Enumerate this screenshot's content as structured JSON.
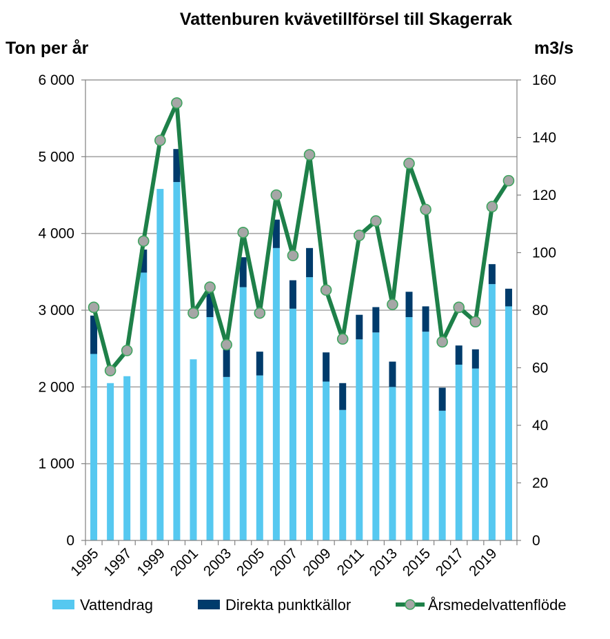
{
  "chart_data": {
    "type": "bar",
    "title": "Vattenburen kvävetillförsel till Skagerrak",
    "ylabel": "Ton per år",
    "y2label": "m3/s",
    "ylim": [
      0,
      6000
    ],
    "y2lim": [
      0,
      160
    ],
    "yticks": [
      "0",
      "1 000",
      "2 000",
      "3 000",
      "4 000",
      "5 000",
      "6 000"
    ],
    "y2ticks": [
      "0",
      "20",
      "40",
      "60",
      "80",
      "100",
      "120",
      "140",
      "160"
    ],
    "grid": true,
    "legend_position": "bottom",
    "stacked": true,
    "years": [
      1995,
      1996,
      1997,
      1998,
      1999,
      2000,
      2001,
      2002,
      2003,
      2004,
      2005,
      2006,
      2007,
      2008,
      2009,
      2010,
      2011,
      2012,
      2013,
      2014,
      2015,
      2016,
      2017,
      2018,
      2019,
      2020
    ],
    "xtick_labels": [
      "1995",
      "1997",
      "1999",
      "2001",
      "2003",
      "2005",
      "2007",
      "2009",
      "2011",
      "2013",
      "2015",
      "2017",
      "2019"
    ],
    "series": [
      {
        "name": "Vattendrag",
        "type": "bar",
        "axis": "left",
        "color": "#56c8f0",
        "values": [
          2430,
          2050,
          2140,
          3490,
          4580,
          4670,
          2360,
          2910,
          2130,
          3300,
          2150,
          3810,
          3020,
          3430,
          2070,
          1700,
          2620,
          2710,
          2000,
          2910,
          2720,
          1690,
          2290,
          2240,
          3340,
          3050
        ]
      },
      {
        "name": "Direkta punktkällor",
        "type": "bar",
        "axis": "left",
        "color": "#003b6b",
        "values": [
          500,
          0,
          0,
          300,
          0,
          430,
          0,
          310,
          420,
          390,
          310,
          370,
          370,
          380,
          380,
          350,
          320,
          330,
          330,
          330,
          330,
          300,
          250,
          250,
          260,
          230
        ]
      },
      {
        "name": "Årsmedelvattenflöde",
        "type": "line",
        "axis": "right",
        "color": "#1e8049",
        "marker_color": "#a6a6a6",
        "values": [
          81,
          59,
          66,
          104,
          139,
          152,
          79,
          88,
          68,
          107,
          79,
          120,
          99,
          134,
          87,
          70,
          106,
          111,
          82,
          131,
          115,
          69,
          81,
          76,
          116,
          125
        ]
      }
    ]
  }
}
